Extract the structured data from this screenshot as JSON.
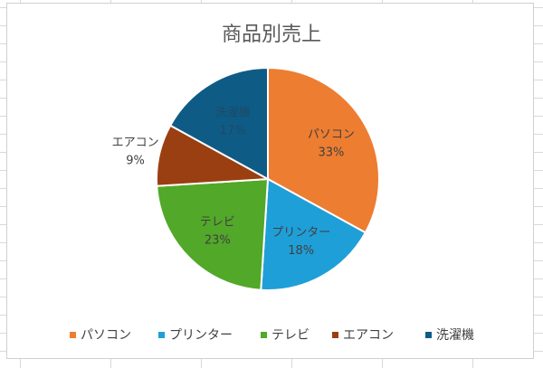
{
  "chart_data": {
    "type": "pie",
    "title": "商品別売上",
    "categories": [
      "パソコン",
      "プリンター",
      "テレビ",
      "エアコン",
      "洗濯機"
    ],
    "values": [
      33,
      18,
      23,
      9,
      17
    ],
    "value_labels": [
      "33%",
      "18%",
      "23%",
      "9%",
      "17%"
    ],
    "colors": [
      "#ED7D31",
      "#1F9FD8",
      "#52A829",
      "#9A3F11",
      "#0E5C86"
    ],
    "start_angle_deg": 0,
    "direction": "clockwise",
    "legend_position": "bottom"
  }
}
